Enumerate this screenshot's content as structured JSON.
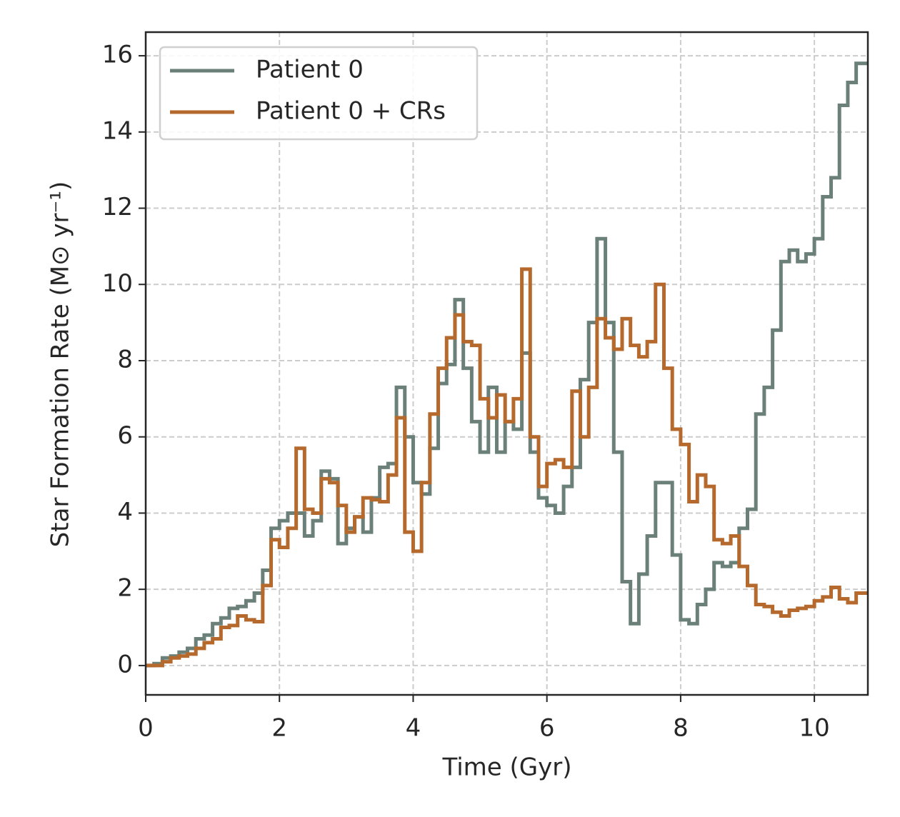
{
  "chart_data": {
    "type": "step",
    "xlabel": "Time (Gyr)",
    "ylabel": "Star Formation Rate (M⊙ yr⁻¹)",
    "x": [
      0,
      0.125,
      0.25,
      0.375,
      0.5,
      0.625,
      0.75,
      0.875,
      1,
      1.125,
      1.25,
      1.375,
      1.5,
      1.625,
      1.75,
      1.875,
      2,
      2.125,
      2.25,
      2.375,
      2.5,
      2.625,
      2.75,
      2.875,
      3,
      3.125,
      3.25,
      3.375,
      3.5,
      3.625,
      3.75,
      3.875,
      4,
      4.125,
      4.25,
      4.375,
      4.5,
      4.625,
      4.75,
      4.875,
      5,
      5.125,
      5.25,
      5.375,
      5.5,
      5.625,
      5.75,
      5.875,
      6,
      6.125,
      6.25,
      6.375,
      6.5,
      6.625,
      6.75,
      6.875,
      7,
      7.125,
      7.25,
      7.375,
      7.5,
      7.625,
      7.75,
      7.875,
      8,
      8.125,
      8.25,
      8.375,
      8.5,
      8.625,
      8.75,
      8.875,
      9,
      9.125,
      9.25,
      9.375,
      9.5,
      9.625,
      9.75,
      9.875,
      10,
      10.125,
      10.25,
      10.375,
      10.5,
      10.625,
      10.8
    ],
    "series": [
      {
        "name": "Patient 0",
        "color": "#6b8078",
        "values": [
          0,
          0.05,
          0.2,
          0.25,
          0.35,
          0.45,
          0.7,
          0.8,
          1.1,
          1.25,
          1.5,
          1.55,
          1.7,
          1.9,
          2.5,
          3.6,
          3.8,
          4.0,
          4.0,
          3.4,
          3.8,
          5.1,
          4.9,
          3.2,
          3.6,
          3.9,
          3.5,
          4.4,
          5.2,
          5.3,
          7.3,
          6.0,
          4.8,
          4.5,
          5.7,
          7.4,
          7.9,
          9.6,
          7.8,
          6.4,
          5.6,
          7.3,
          5.6,
          6.4,
          6.2,
          8.2,
          5.6,
          4.4,
          4.2,
          4.0,
          4.7,
          5.2,
          7.5,
          9.0,
          11.2,
          9.0,
          5.6,
          2.2,
          1.1,
          2.4,
          3.4,
          4.8,
          4.8,
          2.9,
          1.2,
          1.1,
          1.6,
          2.0,
          2.7,
          2.6,
          2.7,
          3.6,
          4.1,
          6.6,
          7.3,
          8.8,
          10.6,
          10.9,
          10.6,
          10.8,
          11.2,
          12.3,
          12.8,
          14.7,
          15.3,
          15.8,
          15.8
        ]
      },
      {
        "name": "Patient 0 + CRs",
        "color": "#b5692c",
        "values": [
          0,
          0,
          0.1,
          0.2,
          0.25,
          0.3,
          0.45,
          0.6,
          0.7,
          1.0,
          1.05,
          1.3,
          1.2,
          1.15,
          2.1,
          3.3,
          3.1,
          3.6,
          5.7,
          4.1,
          4.0,
          4.9,
          4.8,
          4.2,
          3.5,
          3.9,
          4.4,
          4.35,
          4.3,
          5.0,
          6.5,
          3.5,
          3.0,
          4.8,
          6.6,
          7.8,
          8.6,
          9.2,
          8.5,
          8.4,
          7.0,
          6.5,
          7.1,
          6.4,
          7.0,
          10.4,
          6.0,
          4.7,
          5.3,
          5.4,
          5.2,
          7.2,
          6.0,
          7.3,
          9.1,
          8.6,
          8.3,
          9.1,
          8.4,
          8.1,
          8.5,
          10.0,
          7.8,
          6.2,
          5.8,
          4.3,
          5.0,
          4.7,
          3.3,
          3.2,
          3.4,
          2.6,
          2.1,
          1.6,
          1.55,
          1.4,
          1.3,
          1.45,
          1.5,
          1.55,
          1.7,
          1.8,
          2.05,
          1.75,
          1.65,
          1.9,
          1.9
        ]
      }
    ],
    "xlim": [
      0,
      10.8
    ],
    "ylim": [
      -0.77,
      16.62
    ],
    "xticks": [
      0,
      2,
      4,
      6,
      8,
      10
    ],
    "yticks": [
      0,
      2,
      4,
      6,
      8,
      10,
      12,
      14,
      16
    ],
    "grid": true,
    "legend": "upper left"
  }
}
